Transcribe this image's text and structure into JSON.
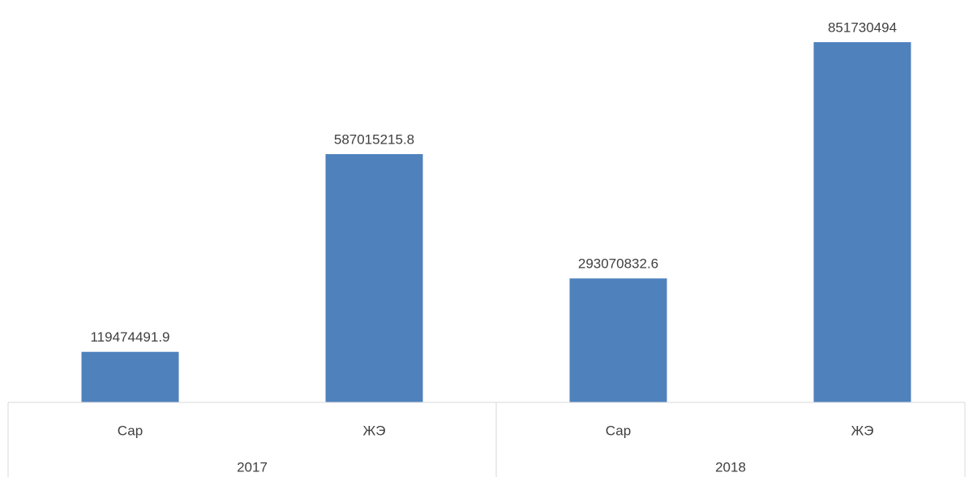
{
  "chart_data": {
    "type": "bar",
    "categories": [
      "Сар",
      "ЖЭ",
      "Сар",
      "ЖЭ"
    ],
    "groups": [
      "2017",
      "2018"
    ],
    "values": [
      119474491.9,
      587015215.8,
      293070832.6,
      851730494
    ],
    "color": "#4f81bd"
  }
}
